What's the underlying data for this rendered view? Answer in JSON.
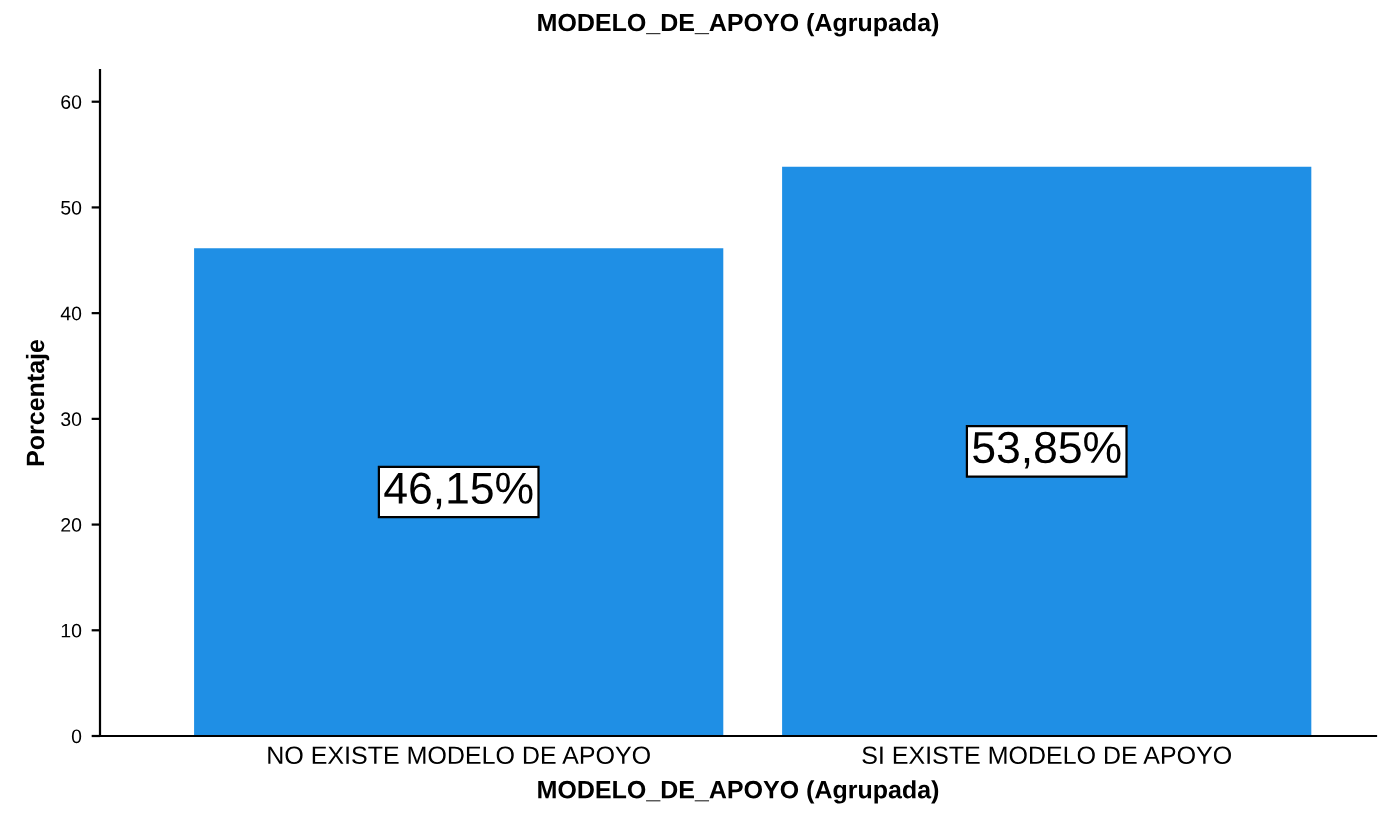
{
  "chart_data": {
    "type": "bar",
    "title": "MODELO_DE_APOYO (Agrupada)",
    "xlabel": "MODELO_DE_APOYO (Agrupada)",
    "ylabel": "Porcentaje",
    "categories": [
      "NO EXISTE MODELO DE APOYO",
      "SI EXISTE MODELO DE APOYO"
    ],
    "values": [
      46.15,
      53.85
    ],
    "value_labels": [
      "46,15%",
      "53,85%"
    ],
    "color": "#1f8fe5",
    "ylim": [
      0,
      63
    ],
    "yticks": [
      0,
      10,
      20,
      30,
      40,
      50,
      60
    ],
    "grid": false,
    "legend": false
  }
}
